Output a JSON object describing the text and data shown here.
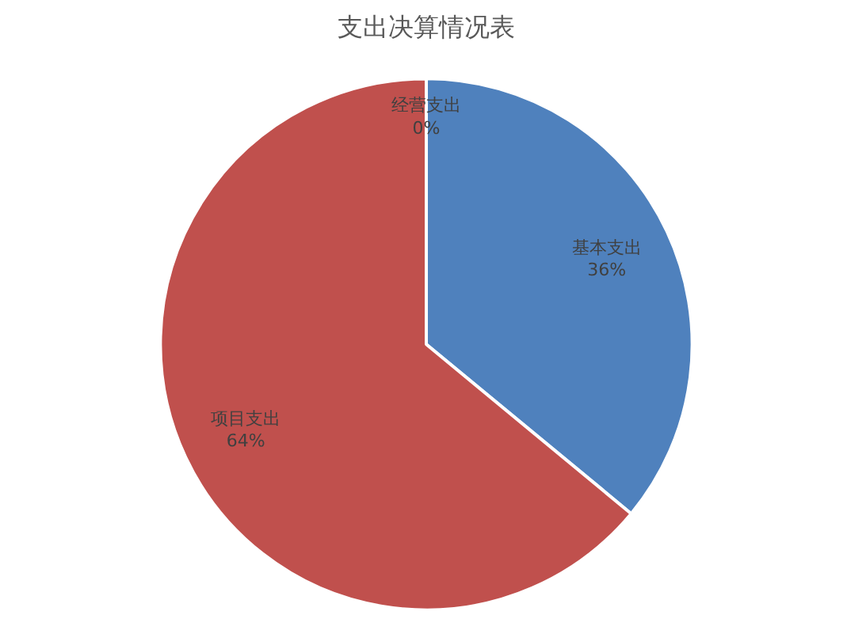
{
  "chart_data": {
    "type": "pie",
    "title": "支出决算情况表",
    "categories": [
      "基本支出",
      "项目支出",
      "经营支出"
    ],
    "values": [
      36,
      64,
      0
    ],
    "colors": [
      "#4f81bd",
      "#c0504d",
      "#9bbb59"
    ],
    "value_labels": [
      "36%",
      "64%",
      "0%"
    ],
    "legend": false
  }
}
